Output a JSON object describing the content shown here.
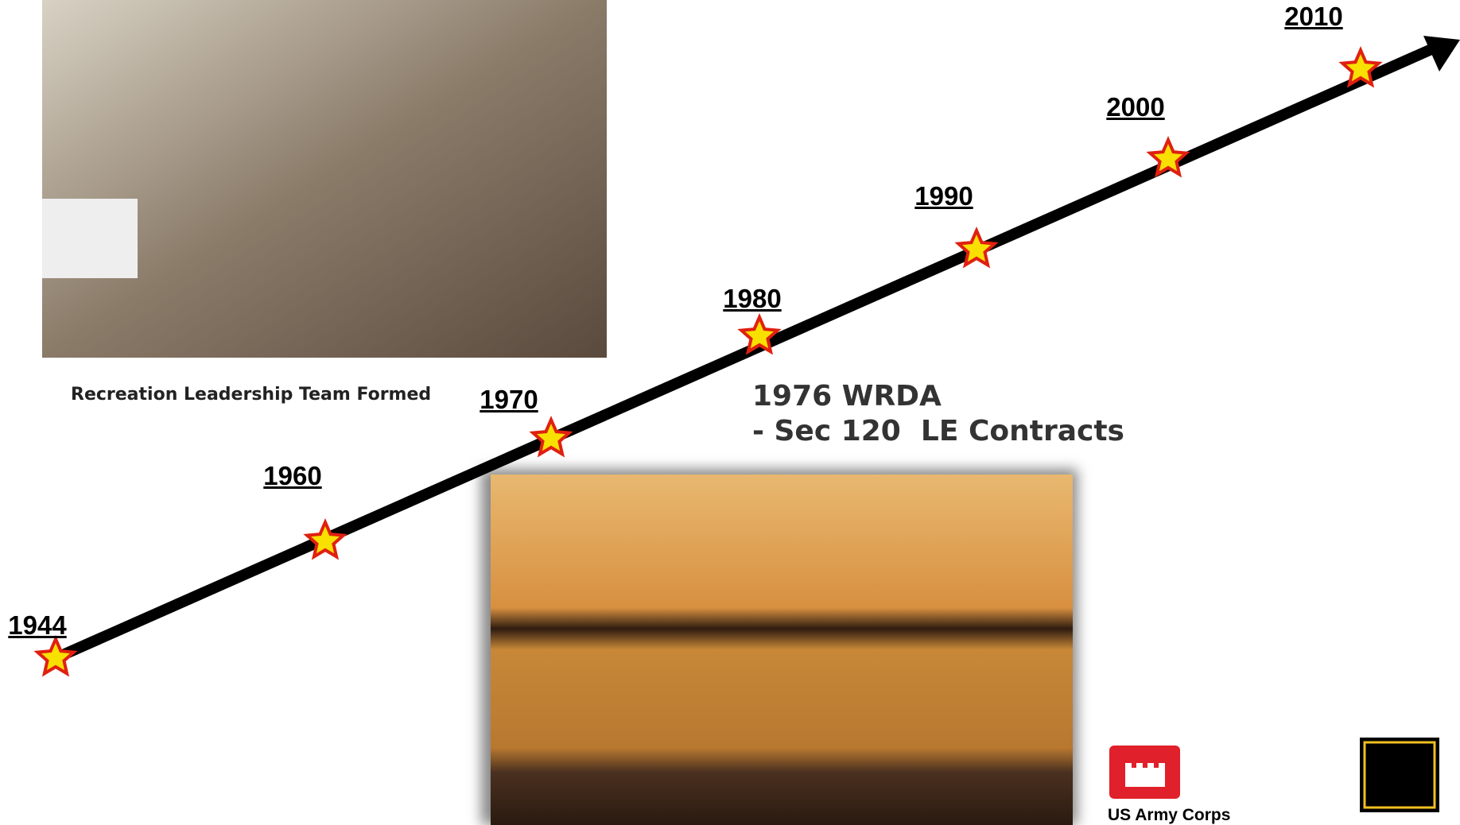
{
  "timeline": {
    "years": [
      "1944",
      "1960",
      "1970",
      "1980",
      "1990",
      "2000",
      "2010"
    ]
  },
  "photo_caption": "Recreation Leadership Team Formed",
  "event": {
    "title": "1976 WRDA",
    "detail": "- Sec 120  LE Contracts"
  },
  "logo": {
    "text": "US Army Corps"
  }
}
